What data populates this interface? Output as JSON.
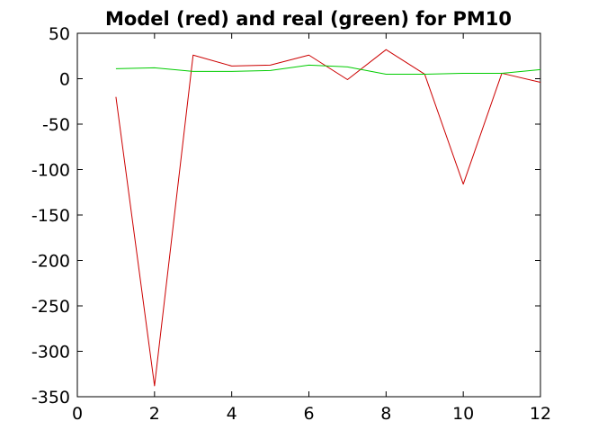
{
  "chart_data": {
    "type": "line",
    "title": "Model (red) and real (green) for PM10",
    "xlabel": "",
    "ylabel": "",
    "xlim": [
      0,
      12
    ],
    "ylim": [
      -350,
      50
    ],
    "xticks": [
      0,
      2,
      4,
      6,
      8,
      10,
      12
    ],
    "yticks": [
      50,
      0,
      -50,
      -100,
      -150,
      -200,
      -250,
      -300,
      -350
    ],
    "grid": false,
    "legend": "none",
    "series": [
      {
        "color": "#cc0000",
        "x": [
          1,
          2,
          3,
          4,
          5,
          6,
          7,
          8,
          9,
          10,
          11,
          12
        ],
        "y": [
          -20,
          -338,
          26,
          14,
          15,
          26,
          -1,
          32,
          5,
          -116,
          6,
          -4
        ]
      },
      {
        "color": "#00cc00",
        "x": [
          1,
          2,
          3,
          4,
          5,
          6,
          7,
          8,
          9,
          10,
          11,
          12
        ],
        "y": [
          11,
          12,
          8,
          8,
          9,
          15,
          13,
          5,
          5,
          6,
          6,
          10
        ]
      }
    ]
  }
}
